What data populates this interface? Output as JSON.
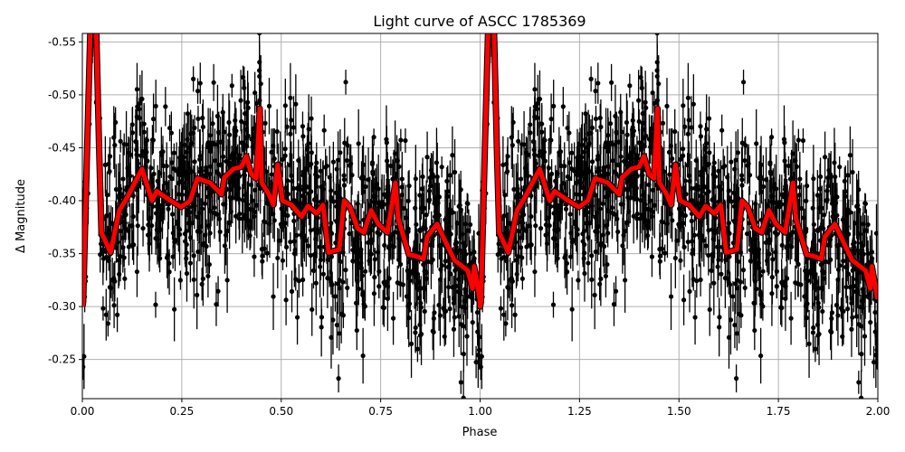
{
  "chart_data": {
    "type": "scatter",
    "title": "Light curve of ASCC 1785369",
    "xlabel": "Phase",
    "ylabel": "Δ Magnitude",
    "xlim": [
      0,
      2
    ],
    "ylim": [
      -0.558,
      -0.213
    ],
    "y_inverted": true,
    "grid": true,
    "xticks": [
      "0.00",
      "0.25",
      "0.50",
      "0.75",
      "1.00",
      "1.25",
      "1.50",
      "1.75",
      "2.00"
    ],
    "yticks": [
      "-0.55",
      "-0.50",
      "-0.45",
      "-0.40",
      "-0.35",
      "-0.30",
      "-0.25"
    ],
    "colors": {
      "points": "#000000",
      "model": "#ff0000",
      "grid": "#b0b0b0"
    },
    "model_curve": {
      "phase": [
        0.0,
        0.002,
        0.012,
        0.02,
        0.027,
        0.035,
        0.042,
        0.048,
        0.071,
        0.093,
        0.111,
        0.15,
        0.175,
        0.187,
        0.214,
        0.248,
        0.271,
        0.289,
        0.321,
        0.35,
        0.357,
        0.38,
        0.4,
        0.412,
        0.425,
        0.437,
        0.446,
        0.451,
        0.469,
        0.48,
        0.491,
        0.503,
        0.526,
        0.551,
        0.567,
        0.589,
        0.605,
        0.619,
        0.646,
        0.658,
        0.673,
        0.692,
        0.708,
        0.726,
        0.744,
        0.767,
        0.787,
        0.794,
        0.821,
        0.835,
        0.858,
        0.867,
        0.892,
        0.935,
        0.969,
        0.981,
        0.985,
        0.999
      ],
      "magnitude": [
        -0.3,
        -0.304,
        -0.45,
        -0.56,
        -0.62,
        -0.56,
        -0.45,
        -0.37,
        -0.351,
        -0.391,
        -0.402,
        -0.43,
        -0.4,
        -0.409,
        -0.402,
        -0.394,
        -0.4,
        -0.421,
        -0.417,
        -0.406,
        -0.422,
        -0.43,
        -0.432,
        -0.442,
        -0.425,
        -0.421,
        -0.487,
        -0.417,
        -0.406,
        -0.396,
        -0.434,
        -0.4,
        -0.396,
        -0.385,
        -0.395,
        -0.388,
        -0.396,
        -0.351,
        -0.354,
        -0.4,
        -0.394,
        -0.374,
        -0.37,
        -0.391,
        -0.378,
        -0.37,
        -0.417,
        -0.383,
        -0.349,
        -0.348,
        -0.345,
        -0.366,
        -0.378,
        -0.344,
        -0.334,
        -0.317,
        -0.338,
        -0.307
      ],
      "repeats_every": 1
    }
  }
}
